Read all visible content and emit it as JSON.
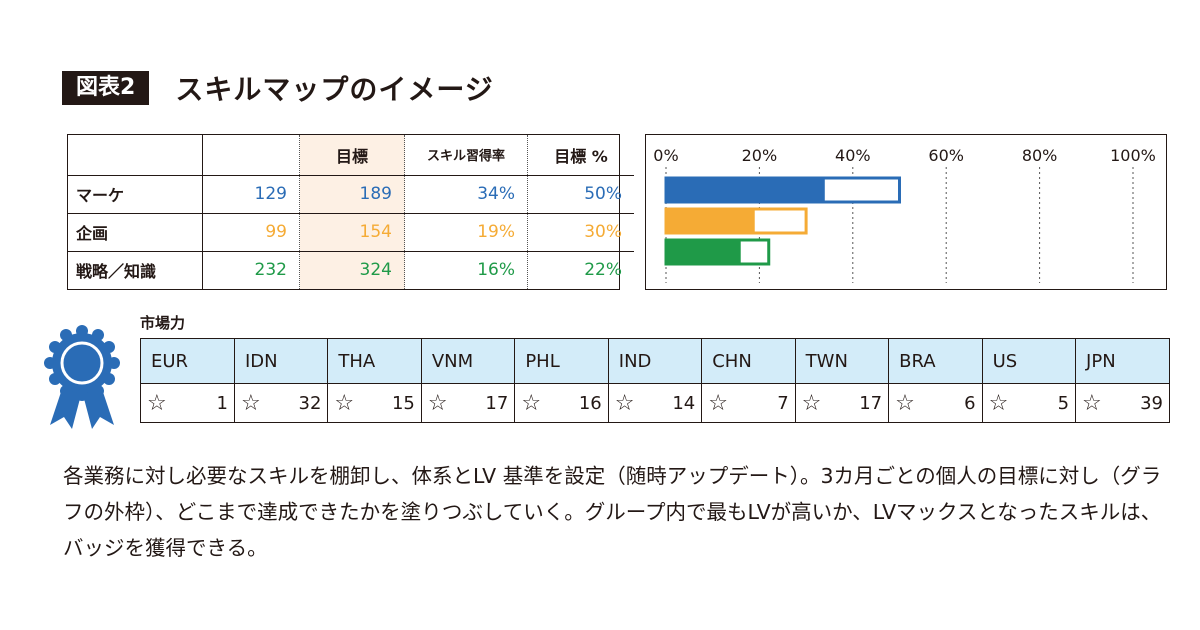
{
  "header": {
    "figure_label": "図表2",
    "title": "スキルマップのイメージ"
  },
  "skills_table": {
    "headers": [
      "",
      "",
      "目標",
      "スキル習得率",
      "目標 %"
    ],
    "rows": [
      {
        "name": "マーケ",
        "current": "129",
        "target": "189",
        "rate": "34%",
        "target_pct": "50%",
        "color": "#2a6cb6"
      },
      {
        "name": "企画",
        "current": "99",
        "target": "154",
        "rate": "19%",
        "target_pct": "30%",
        "color": "#f5ab35"
      },
      {
        "name": "戦略／知識",
        "current": "232",
        "target": "324",
        "rate": "16%",
        "target_pct": "22%",
        "color": "#1f9a48"
      }
    ]
  },
  "chart_data": {
    "type": "bar",
    "orientation": "horizontal",
    "x_ticks": [
      "0%",
      "20%",
      "40%",
      "60%",
      "80%",
      "100%"
    ],
    "xlim": [
      0,
      100
    ],
    "grid": true,
    "series": [
      {
        "skill_rate": 34,
        "target": 50,
        "color": "#2a6cb6"
      },
      {
        "skill_rate": 19,
        "target": 30,
        "color": "#f5ab35"
      },
      {
        "skill_rate": 16,
        "target": 22,
        "color": "#1f9a48"
      }
    ]
  },
  "market": {
    "label": "市場力",
    "star_symbol": "☆",
    "countries": [
      {
        "code": "EUR",
        "value": "1"
      },
      {
        "code": "IDN",
        "value": "32"
      },
      {
        "code": "THA",
        "value": "15"
      },
      {
        "code": "VNM",
        "value": "17"
      },
      {
        "code": "PHL",
        "value": "16"
      },
      {
        "code": "IND",
        "value": "14"
      },
      {
        "code": "CHN",
        "value": "7"
      },
      {
        "code": "TWN",
        "value": "17"
      },
      {
        "code": "BRA",
        "value": "6"
      },
      {
        "code": "US",
        "value": "5"
      },
      {
        "code": "JPN",
        "value": "39"
      }
    ]
  },
  "badge": {
    "icon": "ribbon-badge-icon",
    "color": "#2a6cb6"
  },
  "description": "各業務に対し必要なスキルを棚卸し、体系とLV 基準を設定（随時アップデート）。3カ月ごとの個人の目標に対し（グラフの外枠）、どこまで達成できたかを塗りつぶしていく。グループ内で最もLVが高いか、LVマックスとなったスキルは、バッジを獲得できる。"
}
